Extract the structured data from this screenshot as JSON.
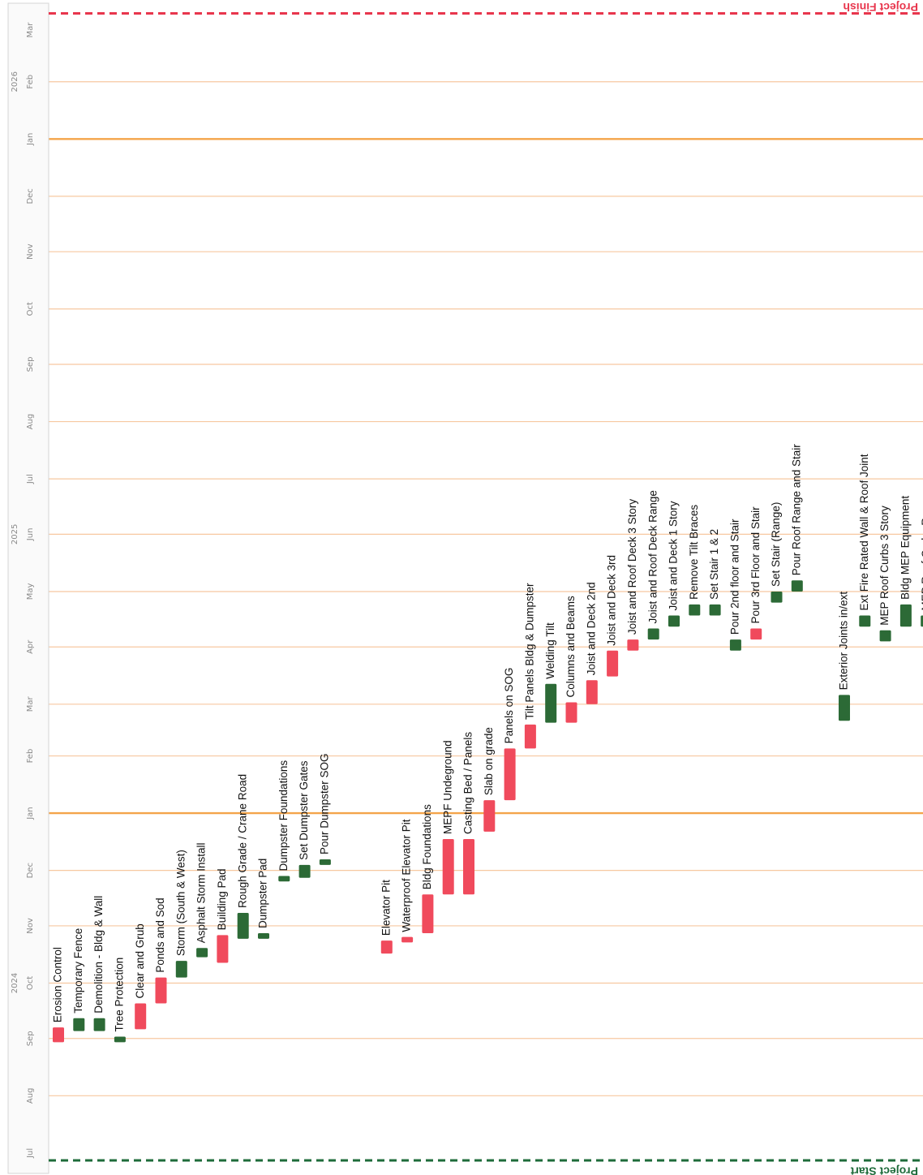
{
  "chart_data": {
    "type": "gantt",
    "orientation": "rotated-90",
    "time_axis": {
      "ticks": [
        {
          "label": "Jul",
          "date": "2024-07-01"
        },
        {
          "label": "Aug",
          "date": "2024-08-01"
        },
        {
          "label": "Sep",
          "date": "2024-09-01"
        },
        {
          "label": "Oct",
          "date": "2024-10-01"
        },
        {
          "label": "Nov",
          "date": "2024-11-01"
        },
        {
          "label": "Dec",
          "date": "2024-12-01"
        },
        {
          "label": "Jan",
          "date": "2025-01-01"
        },
        {
          "label": "Feb",
          "date": "2025-02-01"
        },
        {
          "label": "Mar",
          "date": "2025-03-01"
        },
        {
          "label": "Apr",
          "date": "2025-04-01"
        },
        {
          "label": "May",
          "date": "2025-05-01"
        },
        {
          "label": "Jun",
          "date": "2025-06-01"
        },
        {
          "label": "Jul",
          "date": "2025-07-01"
        },
        {
          "label": "Aug",
          "date": "2025-08-01"
        },
        {
          "label": "Sep",
          "date": "2025-09-01"
        },
        {
          "label": "Oct",
          "date": "2025-10-01"
        },
        {
          "label": "Nov",
          "date": "2025-11-01"
        },
        {
          "label": "Dec",
          "date": "2025-12-01"
        },
        {
          "label": "Jan",
          "date": "2026-01-01"
        },
        {
          "label": "Feb",
          "date": "2026-02-01"
        },
        {
          "label": "Mar",
          "date": "2026-03-01"
        }
      ],
      "years": [
        {
          "label": "2024",
          "date": "2024-10-01"
        },
        {
          "label": "2025",
          "date": "2025-06-01"
        },
        {
          "label": "2026",
          "date": "2026-02-01"
        }
      ],
      "range": [
        "2024-06-27",
        "2026-03-12"
      ],
      "grid": true,
      "year_boundaries": [
        "2025-01-01",
        "2026-01-01"
      ]
    },
    "markers": [
      {
        "label": "Project Start",
        "date": "2024-06-27",
        "color": "#1e6b3a"
      },
      {
        "label": "Project Finish",
        "date": "2026-03-10",
        "color": "#e8364d"
      }
    ],
    "colors": {
      "red": "#f04a5c",
      "green": "#2c6a36",
      "grid": "#f7c8a0",
      "year_line": "#f4a44a",
      "axis_text": "#8a8a8a"
    },
    "tasks": [
      {
        "name": "Erosion Control",
        "start": "2024-08-30",
        "end": "2024-09-07",
        "color": "red"
      },
      {
        "name": "Temporary Fence",
        "start": "2024-09-05",
        "end": "2024-09-12",
        "color": "green"
      },
      {
        "name": "Demolition - Bldg & Wall",
        "start": "2024-09-05",
        "end": "2024-09-12",
        "color": "green"
      },
      {
        "name": "Tree Protection",
        "start": "2024-08-30",
        "end": "2024-09-02",
        "color": "green"
      },
      {
        "name": "Clear and Grub",
        "start": "2024-09-06",
        "end": "2024-09-20",
        "color": "red"
      },
      {
        "name": "Ponds and Sod",
        "start": "2024-09-20",
        "end": "2024-10-04",
        "color": "red"
      },
      {
        "name": "Storm (South & West)",
        "start": "2024-10-04",
        "end": "2024-10-13",
        "color": "green"
      },
      {
        "name": "Asphalt Storm Install",
        "start": "2024-10-15",
        "end": "2024-10-20",
        "color": "green"
      },
      {
        "name": "Building Pad",
        "start": "2024-10-12",
        "end": "2024-10-27",
        "color": "red"
      },
      {
        "name": "Rough Grade / Crane Road",
        "start": "2024-10-25",
        "end": "2024-11-08",
        "color": "green"
      },
      {
        "name": "Dumpster Pad",
        "start": "2024-10-25",
        "end": "2024-10-28",
        "color": "green"
      },
      {
        "name": "Dumpster Foundations",
        "start": "2024-11-25",
        "end": "2024-11-28",
        "color": "green"
      },
      {
        "name": "Set Dumpster Gates",
        "start": "2024-11-27",
        "end": "2024-12-04",
        "color": "green"
      },
      {
        "name": "Pour Dumpster SOG",
        "start": "2024-12-04",
        "end": "2024-12-07",
        "color": "green"
      },
      {
        "name": "Elevator Pit",
        "start": "2024-10-17",
        "end": "2024-10-24",
        "color": "red"
      },
      {
        "name": "Waterproof Elevator Pit",
        "start": "2024-10-23",
        "end": "2024-10-26",
        "color": "red"
      },
      {
        "name": "Bldg Foundations",
        "start": "2024-10-28",
        "end": "2024-11-18",
        "color": "red"
      },
      {
        "name": "MEPF Undeground",
        "start": "2024-11-18",
        "end": "2024-12-18",
        "color": "red"
      },
      {
        "name": "Casting Bed / Panels",
        "start": "2024-11-18",
        "end": "2024-12-18",
        "color": "red"
      },
      {
        "name": "Slab on grade",
        "start": "2024-12-22",
        "end": "2025-01-08",
        "color": "red"
      },
      {
        "name": "Panels on SOG",
        "start": "2025-01-08",
        "end": "2025-02-05",
        "color": "red"
      },
      {
        "name": "Tilt Panels Bldg & Dumpster",
        "start": "2025-02-05",
        "end": "2025-02-18",
        "color": "red"
      },
      {
        "name": "Welding Tilt",
        "start": "2025-02-19",
        "end": "2025-03-12",
        "color": "green"
      },
      {
        "name": "Columns and Beams",
        "start": "2025-02-19",
        "end": "2025-03-02",
        "color": "red"
      },
      {
        "name": "Joist and Deck 2nd",
        "start": "2025-03-01",
        "end": "2025-03-14",
        "color": "red"
      },
      {
        "name": "Joist and Deck 3rd",
        "start": "2025-03-16",
        "end": "2025-03-30",
        "color": "red"
      },
      {
        "name": "Joist and Roof Deck 3 Story",
        "start": "2025-03-30",
        "end": "2025-04-05",
        "color": "red"
      },
      {
        "name": "Joist and Roof Deck Range",
        "start": "2025-04-05",
        "end": "2025-04-11",
        "color": "green"
      },
      {
        "name": "Joist and Deck 1 Story",
        "start": "2025-04-12",
        "end": "2025-04-18",
        "color": "green"
      },
      {
        "name": "Remove Tilt Braces",
        "start": "2025-04-18",
        "end": "2025-04-24",
        "color": "green"
      },
      {
        "name": "Set Stair 1 & 2",
        "start": "2025-04-18",
        "end": "2025-04-24",
        "color": "green"
      },
      {
        "name": "Pour 2nd floor and Stair",
        "start": "2025-03-30",
        "end": "2025-04-05",
        "color": "green"
      },
      {
        "name": "Pour 3rd Floor and Stair",
        "start": "2025-04-05",
        "end": "2025-04-11",
        "color": "red"
      },
      {
        "name": "Set Stair (Range)",
        "start": "2025-04-25",
        "end": "2025-05-01",
        "color": "green"
      },
      {
        "name": "Pour Roof Range and Stair",
        "start": "2025-05-01",
        "end": "2025-05-07",
        "color": "green"
      },
      {
        "name": "Exterior Joints in/ext",
        "start": "2025-02-20",
        "end": "2025-03-06",
        "color": "green"
      },
      {
        "name": "Ext Fire Rated Wall & Roof Joint",
        "start": "2025-04-12",
        "end": "2025-04-18",
        "color": "green"
      },
      {
        "name": "MEP Roof Curbs 3 Story",
        "start": "2025-04-04",
        "end": "2025-04-10",
        "color": "green"
      },
      {
        "name": "Bldg MEP Equipment",
        "start": "2025-04-12",
        "end": "2025-04-24",
        "color": "green"
      },
      {
        "name": "MEP Roof Curbs Range",
        "start": "2025-04-12",
        "end": "2025-04-18",
        "color": "green"
      }
    ]
  }
}
